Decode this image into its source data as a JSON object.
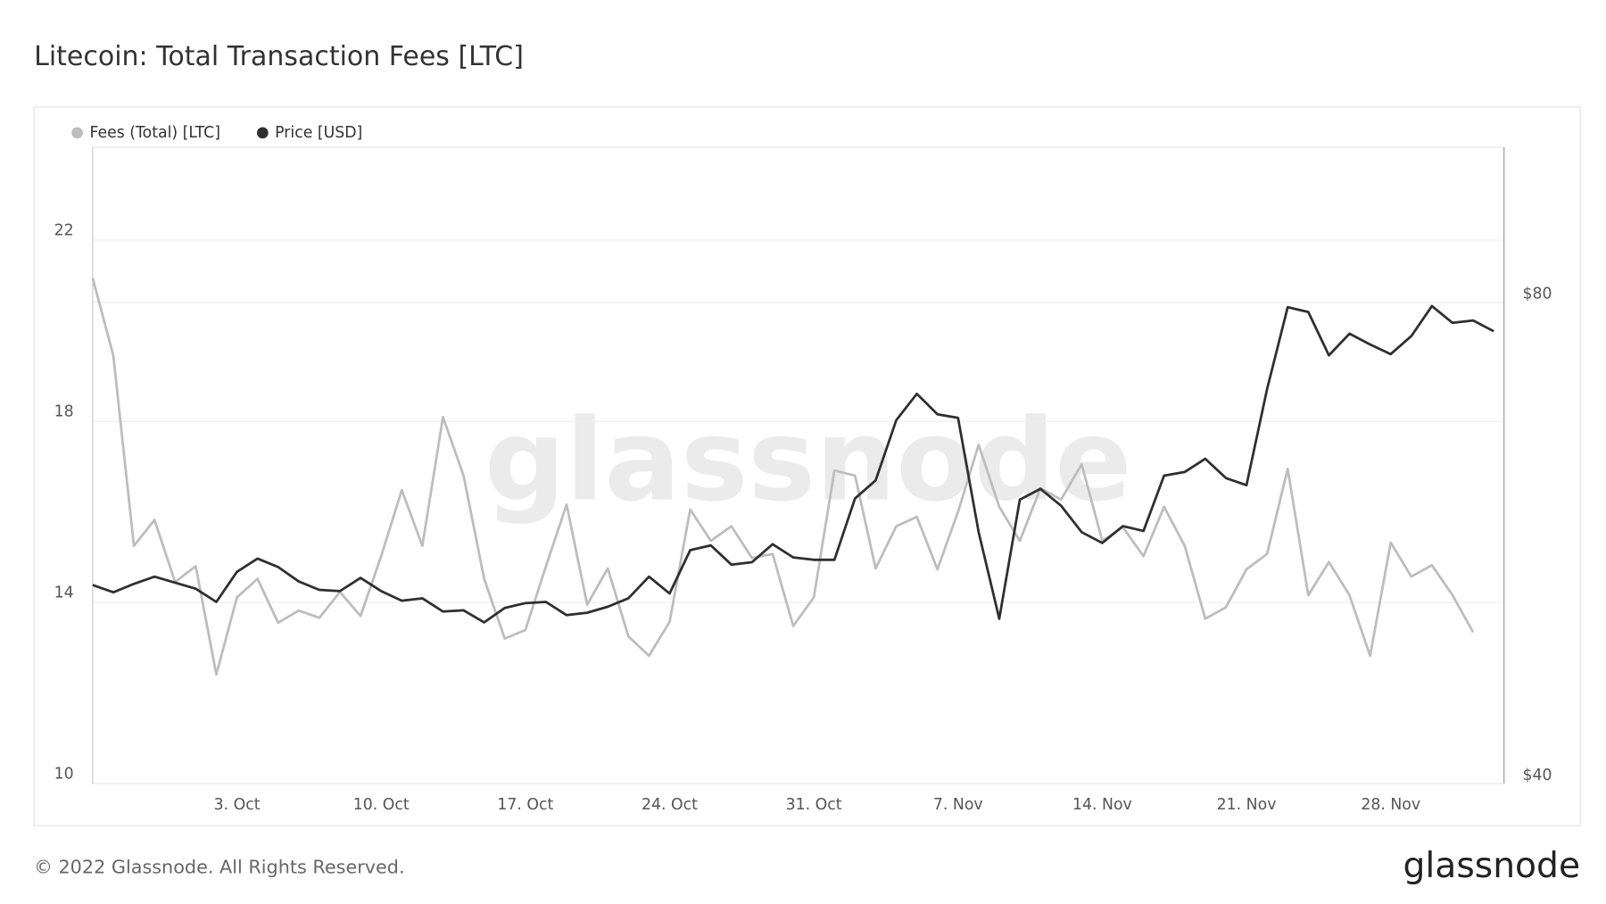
{
  "chart_data": {
    "type": "line",
    "title": "Litecoin: Total Transaction Fees [LTC]",
    "watermark": "glassnode",
    "footer": "© 2022 Glassnode. All Rights Reserved.",
    "logo": "glassnode",
    "categories": [
      null,
      null,
      null,
      null,
      null,
      null,
      null,
      "3. Oct",
      null,
      null,
      null,
      null,
      null,
      null,
      "10. Oct",
      null,
      null,
      null,
      null,
      null,
      null,
      "17. Oct",
      null,
      null,
      null,
      null,
      null,
      null,
      "24. Oct",
      null,
      null,
      null,
      null,
      null,
      null,
      "31. Oct",
      null,
      null,
      null,
      null,
      null,
      null,
      "7. Nov",
      null,
      null,
      null,
      null,
      null,
      null,
      "14. Nov",
      null,
      null,
      null,
      null,
      null,
      null,
      "21. Nov",
      null,
      null,
      null,
      null,
      null,
      null,
      "28. Nov",
      null,
      null,
      null,
      null,
      null
    ],
    "series": [
      {
        "name": "Fees (Total) [LTC]",
        "color": "#bdbdbd",
        "values": [
          21.16,
          19.45,
          15.25,
          15.82,
          14.45,
          14.8,
          12.41,
          14.11,
          14.52,
          13.55,
          13.82,
          13.66,
          14.23,
          13.7,
          15.02,
          16.48,
          15.25,
          18.09,
          16.8,
          14.52,
          13.2,
          13.39,
          14.8,
          16.16,
          13.95,
          14.75,
          13.25,
          12.82,
          13.57,
          16.05,
          15.36,
          15.68,
          14.98,
          15.07,
          13.48,
          14.11,
          16.91,
          16.8,
          14.75,
          15.68,
          15.89,
          14.73,
          16.0,
          17.48,
          16.11,
          15.36,
          16.52,
          16.27,
          17.05,
          15.36,
          15.66,
          15.02,
          16.11,
          15.25,
          13.64,
          13.89,
          14.73,
          15.07,
          16.95,
          14.16,
          14.89,
          14.16,
          12.82,
          15.32,
          14.57,
          14.82,
          14.16,
          13.34,
          null
        ]
      },
      {
        "name": "Price [USD]",
        "color": "#2f2f2f",
        "axis": "y2",
        "values": [
          56.5,
          55.9,
          56.6,
          57.2,
          56.7,
          56.2,
          55.1,
          57.6,
          58.7,
          58.0,
          56.8,
          56.1,
          56.0,
          57.1,
          56.0,
          55.2,
          55.4,
          54.3,
          54.4,
          53.4,
          54.6,
          55.0,
          55.1,
          54.0,
          54.2,
          54.7,
          55.4,
          57.2,
          55.8,
          59.4,
          59.8,
          58.2,
          58.4,
          59.9,
          58.8,
          58.6,
          58.6,
          63.7,
          65.2,
          70.2,
          72.4,
          70.7,
          70.4,
          60.9,
          53.7,
          63.6,
          64.5,
          63.1,
          60.9,
          60.0,
          61.4,
          61.0,
          65.6,
          65.9,
          67.0,
          65.4,
          64.8,
          72.8,
          79.6,
          79.2,
          75.6,
          77.4,
          76.5,
          75.7,
          77.2,
          79.7,
          78.3,
          78.5,
          77.6
        ]
      }
    ],
    "ylim": [
      10,
      24.05
    ],
    "yticks": [
      10,
      14,
      18,
      22
    ],
    "y2lim": [
      40,
      92.9
    ],
    "y2ticks": [
      {
        "value": 40,
        "label": "$40"
      },
      {
        "value": 80,
        "label": "$80"
      }
    ],
    "grid": true
  }
}
